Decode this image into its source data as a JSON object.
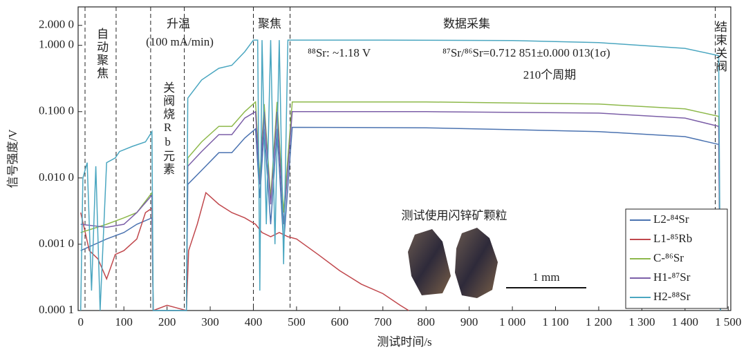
{
  "chart_data": {
    "type": "line",
    "xlabel": "测试时间/s",
    "ylabel": "信号强度/V",
    "ylog": true,
    "xlim": [
      -6,
      1506
    ],
    "ylim": [
      0.0001,
      3.8
    ],
    "xticks": [
      0,
      100,
      200,
      300,
      400,
      500,
      600,
      700,
      800,
      900,
      {
        "value": 1000,
        "label": "1 000"
      },
      {
        "value": 1100,
        "label": "1 100"
      },
      {
        "value": 1200,
        "label": "1 200"
      },
      {
        "value": 1300,
        "label": "1 300"
      },
      {
        "value": 1400,
        "label": "1 400"
      },
      {
        "value": 1500,
        "label": "1 500"
      }
    ],
    "yticks": [
      {
        "value": 0.0001,
        "label": "0.000 1"
      },
      {
        "value": 0.001,
        "label": "0.001 0"
      },
      {
        "value": 0.01,
        "label": "0.010 0"
      },
      {
        "value": 0.1,
        "label": "0.100 0"
      },
      {
        "value": 1,
        "label": "1.000 0"
      },
      {
        "value": 2,
        "label": "2.000 0"
      }
    ],
    "phase_lines": [
      10,
      82,
      162,
      240,
      400,
      485,
      1470
    ],
    "phases": [
      "自动聚焦",
      "升温",
      "(100 mA/min)",
      "关阀烧Rb元素",
      "聚焦",
      "数据采集",
      "结束关阀"
    ],
    "annotations": [
      "⁸⁸Sr: ~1.18 V",
      "⁸⁷Sr/⁸⁶Sr=0.712 851±0.000 013(1σ)",
      "210个周期",
      "测试使用闪锌矿颗粒",
      "1 mm"
    ],
    "legend": "lower right",
    "series": [
      {
        "name": "L2-⁸⁴Sr",
        "color": "#4a72b0",
        "x": [
          0,
          60,
          100,
          130,
          165,
          168,
          245,
          248,
          280,
          320,
          350,
          380,
          405,
          415,
          425,
          440,
          455,
          470,
          490,
          800,
          1200,
          1400,
          1478,
          1482
        ],
        "values": [
          0.0008,
          0.0012,
          0.0015,
          0.002,
          0.0025,
          0.0001,
          0.0001,
          0.008,
          0.013,
          0.024,
          0.024,
          0.04,
          0.055,
          0.005,
          0.055,
          0.002,
          0.055,
          0.001,
          0.058,
          0.057,
          0.05,
          0.042,
          0.032,
          0.0001
        ]
      },
      {
        "name": "L1-⁸⁵Rb",
        "color": "#c0474c",
        "x": [
          0,
          20,
          40,
          60,
          80,
          100,
          130,
          150,
          165,
          168,
          200,
          245,
          250,
          270,
          290,
          320,
          350,
          380,
          405,
          420,
          440,
          460,
          480,
          500,
          550,
          600,
          650,
          700,
          740,
          760
        ],
        "values": [
          0.003,
          0.0008,
          0.0006,
          0.0003,
          0.0007,
          0.0008,
          0.0012,
          0.003,
          0.0035,
          0.0001,
          0.00012,
          0.0001,
          0.0008,
          0.002,
          0.006,
          0.004,
          0.003,
          0.0025,
          0.002,
          0.0015,
          0.0013,
          0.0015,
          0.0013,
          0.0012,
          0.0007,
          0.0004,
          0.00025,
          0.00018,
          0.00012,
          0.0001
        ]
      },
      {
        "name": "C-⁸⁶Sr",
        "color": "#8db84a",
        "x": [
          0,
          60,
          100,
          130,
          165,
          168,
          245,
          248,
          280,
          320,
          350,
          380,
          405,
          415,
          425,
          440,
          455,
          470,
          490,
          800,
          1200,
          1400,
          1478,
          1482
        ],
        "values": [
          0.0015,
          0.002,
          0.0025,
          0.003,
          0.006,
          0.0001,
          0.0001,
          0.02,
          0.035,
          0.06,
          0.06,
          0.1,
          0.14,
          0.01,
          0.13,
          0.005,
          0.14,
          0.003,
          0.14,
          0.14,
          0.13,
          0.11,
          0.085,
          0.0001
        ]
      },
      {
        "name": "H1-⁸⁷Sr",
        "color": "#7b5ea7",
        "x": [
          0,
          60,
          100,
          130,
          165,
          168,
          245,
          248,
          280,
          320,
          350,
          380,
          405,
          415,
          425,
          440,
          455,
          470,
          490,
          800,
          1200,
          1400,
          1478,
          1482
        ],
        "values": [
          0.002,
          0.0018,
          0.002,
          0.003,
          0.0055,
          0.0001,
          0.0001,
          0.015,
          0.025,
          0.045,
          0.045,
          0.08,
          0.1,
          0.008,
          0.1,
          0.004,
          0.1,
          0.002,
          0.1,
          0.1,
          0.095,
          0.08,
          0.06,
          0.0001
        ]
      },
      {
        "name": "H2-⁸⁸Sr",
        "color": "#4aa6c0",
        "x": [
          0,
          5,
          15,
          25,
          35,
          45,
          60,
          80,
          90,
          120,
          150,
          165,
          168,
          245,
          248,
          280,
          320,
          350,
          380,
          400,
          410,
          415,
          420,
          430,
          440,
          450,
          460,
          470,
          480,
          490,
          700,
          1000,
          1200,
          1400,
          1478,
          1482
        ],
        "values": [
          0.0001,
          0.01,
          0.017,
          0.0002,
          0.015,
          0.0001,
          0.017,
          0.02,
          0.025,
          0.03,
          0.035,
          0.05,
          0.0001,
          0.0001,
          0.16,
          0.3,
          0.45,
          0.5,
          0.8,
          1.2,
          1.2,
          0.0002,
          1.2,
          0.002,
          1.2,
          0.001,
          1.2,
          0.0005,
          1.2,
          1.2,
          1.2,
          1.18,
          1.1,
          0.9,
          0.7,
          0.0001
        ]
      }
    ]
  }
}
